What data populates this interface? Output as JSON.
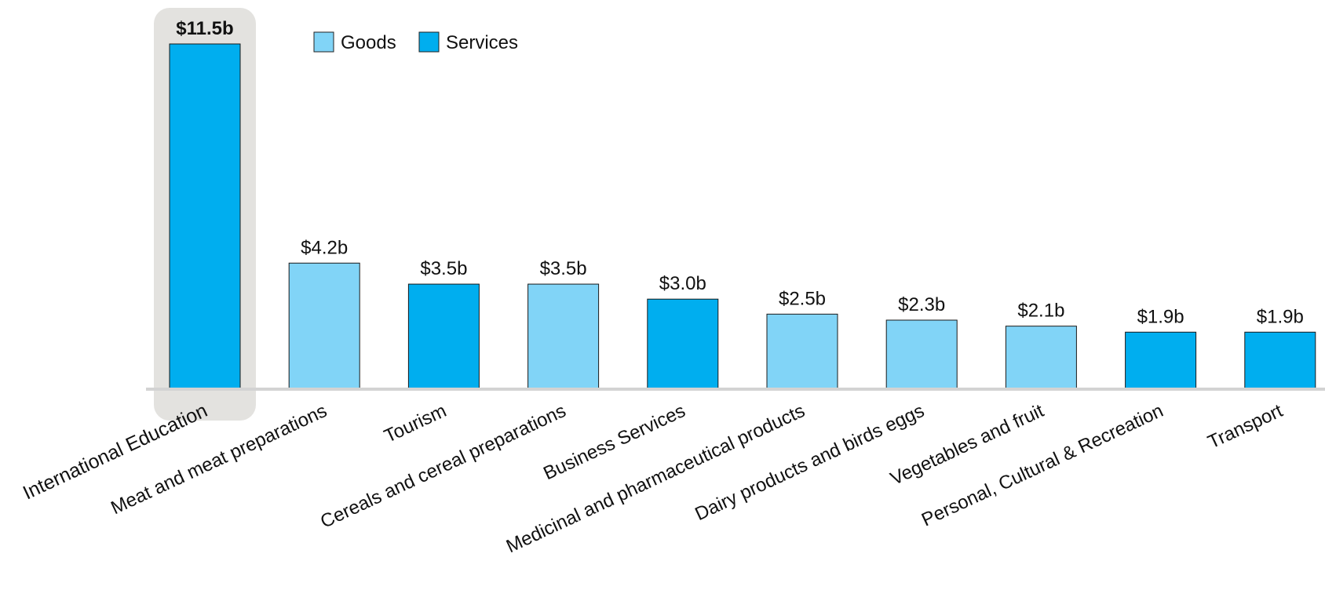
{
  "chart_data": {
    "type": "bar",
    "title": "",
    "xlabel": "",
    "ylabel": "",
    "ylim": [
      0,
      11.5
    ],
    "grid": false,
    "legend_placement": "top-left",
    "highlighted_category": "International Education",
    "colors": {
      "Goods": "#81d4f7",
      "Services": "#00aeef",
      "highlight": "#e3e2df",
      "axis": "#d3d3d3"
    },
    "series": [
      {
        "name": "Goods"
      },
      {
        "name": "Services"
      }
    ],
    "categories": [
      "International Education",
      "Meat and meat preparations",
      "Tourism",
      "Cereals and cereal preparations",
      "Business Services",
      "Medicinal and pharmaceutical products",
      "Dairy products and birds eggs",
      "Vegetables and fruit",
      "Personal, Cultural & Recreation",
      "Transport"
    ],
    "values": [
      11.5,
      4.2,
      3.5,
      3.5,
      3.0,
      2.5,
      2.3,
      2.1,
      1.9,
      1.9
    ],
    "bar_series": [
      "Services",
      "Goods",
      "Services",
      "Goods",
      "Services",
      "Goods",
      "Goods",
      "Goods",
      "Services",
      "Services"
    ],
    "data_labels": [
      "$11.5b",
      "$4.2b",
      "$3.5b",
      "$3.5b",
      "$3.0b",
      "$2.5b",
      "$2.3b",
      "$2.1b",
      "$1.9b",
      "$1.9b"
    ]
  }
}
